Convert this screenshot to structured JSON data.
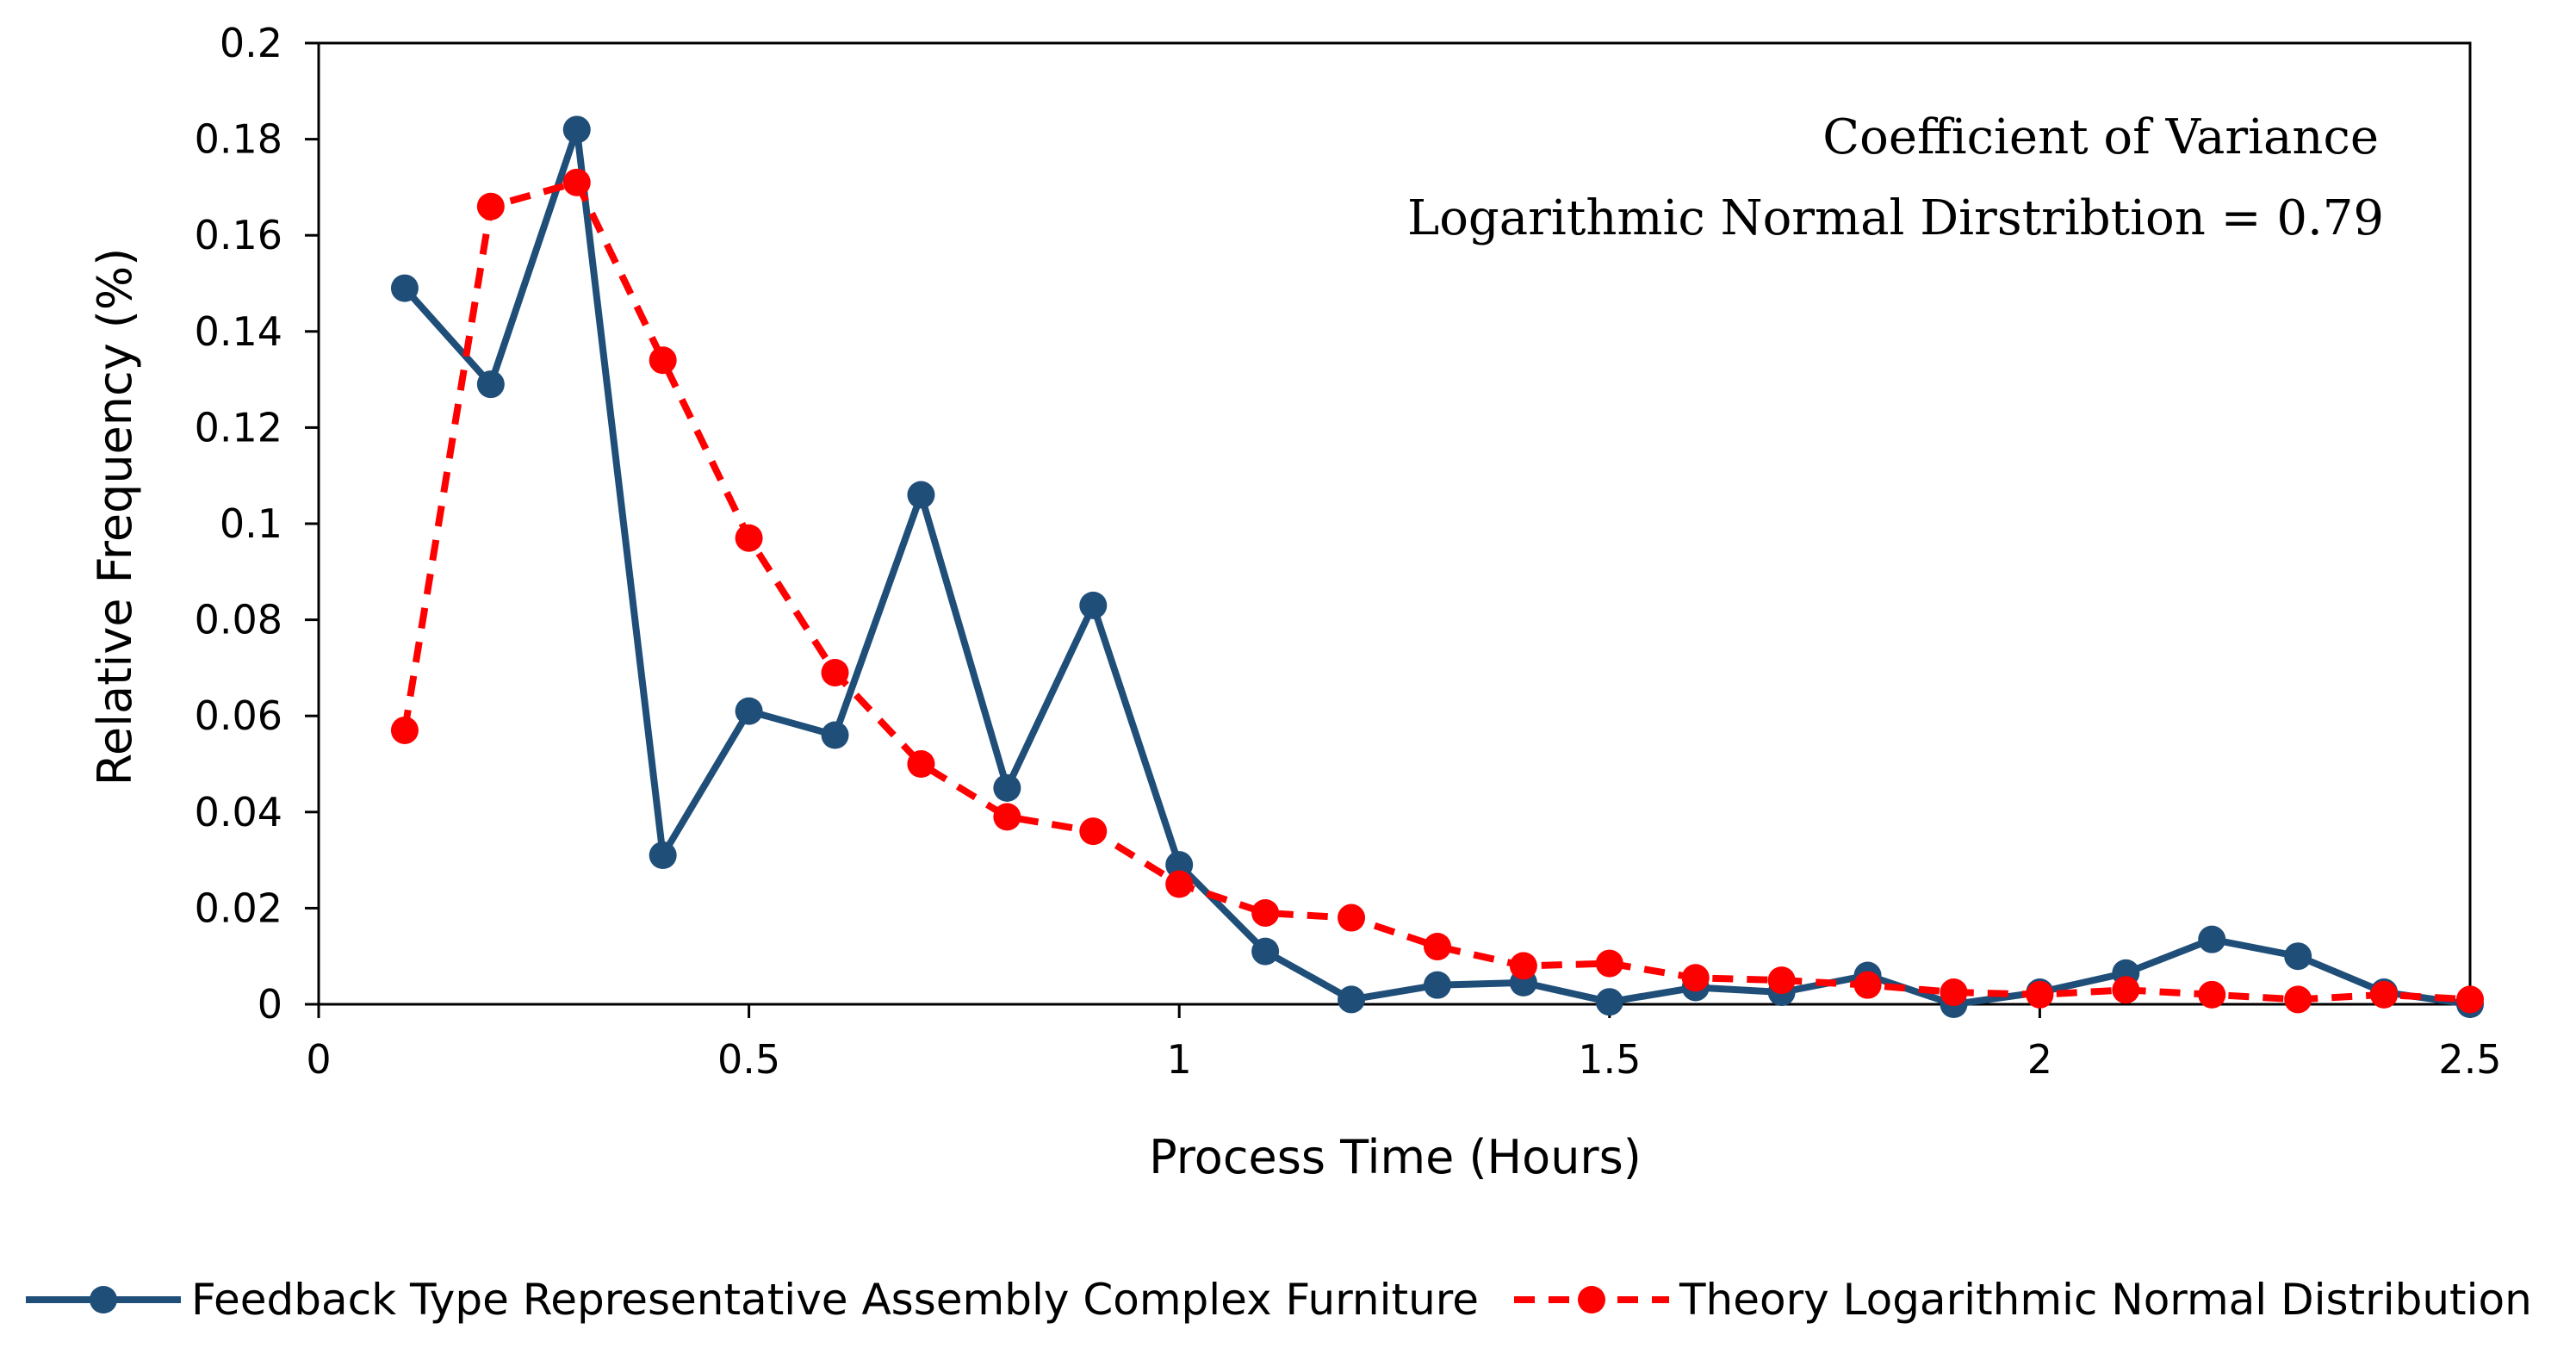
{
  "chart_data": {
    "type": "line",
    "title": "",
    "xlabel": "Process Time (Hours)",
    "ylabel": "Relative Frequency (%)",
    "xlim": [
      0,
      2.5
    ],
    "ylim": [
      0,
      0.2
    ],
    "xticks": [
      0,
      0.5,
      1,
      1.5,
      2,
      2.5
    ],
    "xtick_labels": [
      "0",
      "0.5",
      "1",
      "1.5",
      "2",
      "2.5"
    ],
    "yticks": [
      0,
      0.02,
      0.04,
      0.06,
      0.08,
      0.1,
      0.12,
      0.14,
      0.16,
      0.18,
      0.2
    ],
    "ytick_labels": [
      "0",
      "0.02",
      "0.04",
      "0.06",
      "0.08",
      "0.1",
      "0.12",
      "0.14",
      "0.16",
      "0.18",
      "0.2"
    ],
    "grid": false,
    "legend_position": "bottom",
    "annotations": [
      "Coefficient of Variance",
      "Logarithmic Normal Dirstribtion = 0.79"
    ],
    "x": [
      0.1,
      0.2,
      0.3,
      0.4,
      0.5,
      0.6,
      0.7,
      0.8,
      0.9,
      1.0,
      1.1,
      1.2,
      1.3,
      1.4,
      1.5,
      1.6,
      1.7,
      1.8,
      1.9,
      2.0,
      2.1,
      2.2,
      2.3,
      2.4,
      2.5
    ],
    "series": [
      {
        "name": "Feedback Type Representative Assembly Complex Furniture",
        "color": "#1f4e79",
        "style": "solid",
        "values": [
          0.149,
          0.129,
          0.182,
          0.031,
          0.061,
          0.056,
          0.106,
          0.045,
          0.083,
          0.029,
          0.011,
          0.001,
          0.004,
          0.0045,
          0.0005,
          0.0035,
          0.0025,
          0.006,
          0.0,
          0.0025,
          0.0065,
          0.0135,
          0.01,
          0.0025,
          0.0
        ]
      },
      {
        "name": "Theory Logarithmic Normal Distribution",
        "color": "#ff0000",
        "style": "dashed",
        "values": [
          0.057,
          0.166,
          0.171,
          0.134,
          0.097,
          0.069,
          0.05,
          0.039,
          0.036,
          0.025,
          0.019,
          0.018,
          0.012,
          0.008,
          0.0085,
          0.0055,
          0.005,
          0.004,
          0.0025,
          0.002,
          0.003,
          0.002,
          0.001,
          0.002,
          0.001
        ]
      }
    ]
  }
}
